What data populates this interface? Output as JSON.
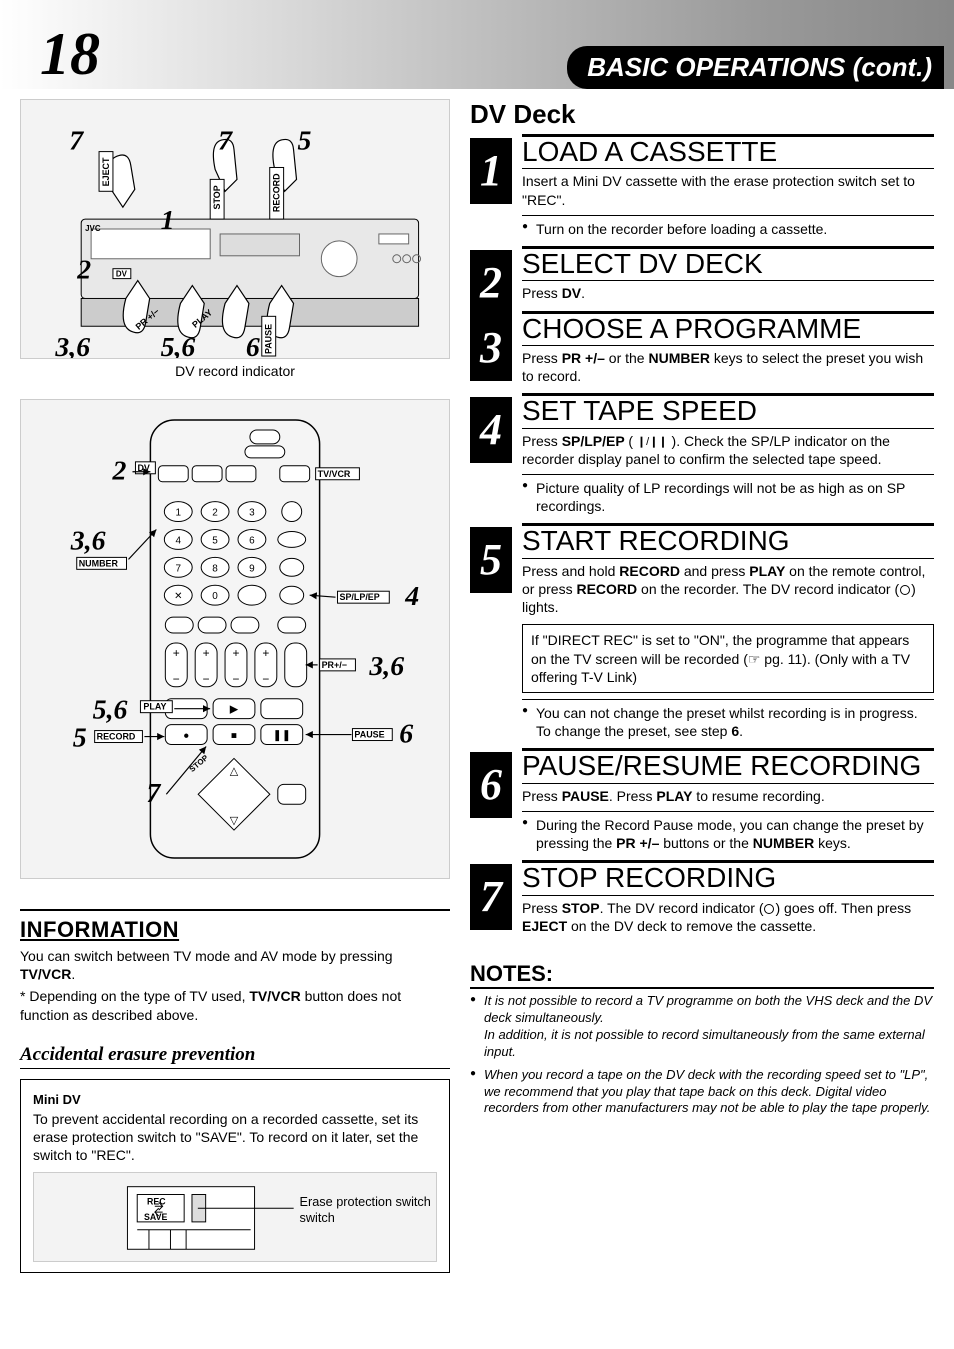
{
  "page": {
    "number": "18",
    "header_title": "BASIC OPERATIONS (cont.)"
  },
  "diagram_top": {
    "caption": "DV record indicator",
    "callouts": {
      "c1": "7",
      "c2": "7",
      "c3": "5",
      "c4": "1",
      "c5": "2",
      "c6": "3,6",
      "c7": "5,6",
      "c8": "6"
    },
    "button_labels": {
      "eject": "EJECT",
      "stop": "STOP",
      "record": "RECORD",
      "pause": "PAUSE",
      "play": "PLAY",
      "pr": "PR +/−",
      "dv": "DV"
    },
    "brand": "JVC"
  },
  "diagram_remote": {
    "callouts": {
      "c1": "2",
      "c2": "3,6",
      "c3": "4",
      "c4": "3,6",
      "c5": "5,6",
      "c6": "5",
      "c7": "6",
      "c8": "7"
    },
    "labels": {
      "dv": "DV",
      "tvvcr": "TV/VCR",
      "number": "NUMBER",
      "splpep": "SP/LP/EP",
      "prpm": "PR+/−",
      "play": "PLAY",
      "record": "RECORD",
      "pause": "PAUSE",
      "stop": "STOP"
    },
    "numpad": [
      "1",
      "2",
      "3",
      "4",
      "5",
      "6",
      "7",
      "8",
      "9",
      "0"
    ]
  },
  "info": {
    "heading": "INFORMATION",
    "body": "You can switch between TV mode and AV mode by pressing ",
    "body_bold": "TV/VCR",
    "body_after": ".",
    "footnote": "*  Depending on the type of TV used, ",
    "footnote_bold": "TV/VCR",
    "footnote_after": " button does not function as described above."
  },
  "erasure": {
    "heading": "Accidental erasure prevention",
    "minidv_heading": "Mini DV",
    "body": "To prevent accidental recording on a recorded cassette, set its erase protection switch to \"SAVE\". To record on it later, set the switch to \"REC\".",
    "diagram": {
      "rec": "REC",
      "save": "SAVE",
      "callout": "Erase protection switch"
    }
  },
  "right": {
    "title": "DV Deck",
    "steps": [
      {
        "n": "1",
        "heading": "LOAD A CASSETTE",
        "body": [
          {
            "t": "Insert a Mini DV cassette with the erase protection switch set to \"REC\"."
          }
        ],
        "bullets": [
          {
            "t": "Turn on the recorder before loading a cassette."
          }
        ]
      },
      {
        "n": "2",
        "heading": "SELECT DV DECK",
        "body": [
          {
            "t": "Press "
          },
          {
            "b": "DV"
          },
          {
            "t": "."
          }
        ]
      },
      {
        "n": "3",
        "heading": "CHOOSE A PROGRAMME",
        "body": [
          {
            "t": "Press "
          },
          {
            "b": "PR +/–"
          },
          {
            "t": " or the "
          },
          {
            "b": "NUMBER"
          },
          {
            "t": " keys to select the preset you wish to record."
          }
        ]
      },
      {
        "n": "4",
        "heading": "SET TAPE SPEED",
        "body": [
          {
            "t": "Press "
          },
          {
            "b": "SP/LP/EP "
          },
          {
            "t": "( "
          },
          {
            "icon": "splp"
          },
          {
            "t": " ). Check the SP/LP indicator on the recorder display panel to confirm the selected tape speed."
          }
        ],
        "bullets": [
          {
            "t": "Picture quality of LP recordings will not be as high as on SP recordings."
          }
        ]
      },
      {
        "n": "5",
        "heading": "START RECORDING",
        "body": [
          {
            "t": "Press and hold "
          },
          {
            "b": "RECORD"
          },
          {
            "t": " and press "
          },
          {
            "b": "PLAY"
          },
          {
            "t": " on the remote control, or press "
          },
          {
            "b": "RECORD"
          },
          {
            "t": " on the recorder. The DV record indicator ("
          },
          {
            "icon": "circle"
          },
          {
            "t": ") lights."
          }
        ],
        "inset": "If \"DIRECT REC\" is set to \"ON\", the programme that appears on the TV screen will be recorded (☞ pg. 11). (Only with a TV offering T-V Link)",
        "bullets": [
          {
            "pre": "You can not change the preset whilst recording is in progress. To change the preset, see step ",
            "b": "6",
            "post": "."
          }
        ]
      },
      {
        "n": "6",
        "heading": "PAUSE/RESUME RECORDING",
        "body": [
          {
            "t": "Press "
          },
          {
            "b": "PAUSE"
          },
          {
            "t": ". Press "
          },
          {
            "b": "PLAY"
          },
          {
            "t": " to resume recording."
          }
        ],
        "bullets": [
          {
            "pre": "During the Record Pause mode, you can change the preset by pressing the ",
            "b": "PR +/–",
            "post": " buttons or the ",
            "b2": "NUMBER",
            "post2": " keys."
          }
        ]
      },
      {
        "n": "7",
        "heading": "STOP RECORDING",
        "body": [
          {
            "t": "Press "
          },
          {
            "b": "STOP"
          },
          {
            "t": ". The DV record indicator ("
          },
          {
            "icon": "circle"
          },
          {
            "t": ") goes off. Then press "
          },
          {
            "b": "EJECT"
          },
          {
            "t": " on the DV deck to remove the cassette."
          }
        ]
      }
    ]
  },
  "notes": {
    "heading": "NOTES:",
    "items": [
      "It is not possible to record a TV programme on both the VHS deck and the DV deck simultaneously.\nIn addition, it is not possible to record simultaneously from the same external input.",
      "When you record a tape on the DV deck with the recording speed set to \"LP\", we recommend that you play that tape back on this deck. Digital video recorders from other manufacturers may not be able to play the tape properly."
    ]
  },
  "style": {
    "colors": {
      "black": "#000000",
      "white": "#ffffff",
      "header_grad_start": "#ffffff",
      "header_grad_end": "#888888"
    },
    "fonts": {
      "serif_italic_bold": "Times New Roman Italic Bold",
      "sans": "Arial"
    }
  }
}
